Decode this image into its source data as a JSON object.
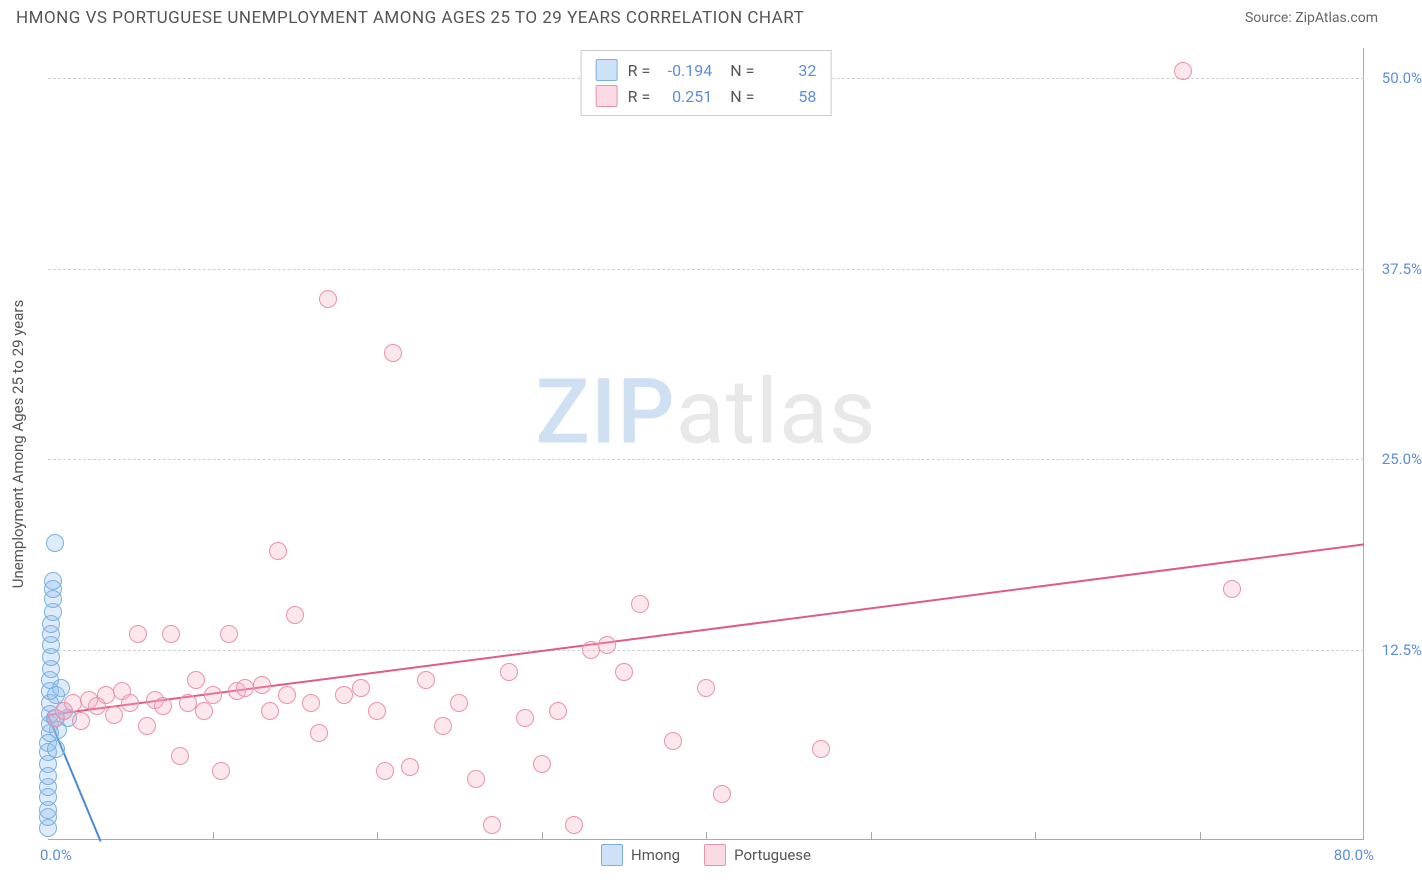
{
  "chart": {
    "title": "HMONG VS PORTUGUESE UNEMPLOYMENT AMONG AGES 25 TO 29 YEARS CORRELATION CHART",
    "source": "Source: ZipAtlas.com",
    "y_axis_label": "Unemployment Among Ages 25 to 29 years",
    "type": "scatter",
    "xlim": [
      0,
      80
    ],
    "ylim": [
      0,
      52
    ],
    "x_ticks": [
      0,
      10,
      20,
      30,
      40,
      50,
      60,
      70,
      80
    ],
    "y_gridlines": [
      12.5,
      25.0,
      37.5,
      50.0
    ],
    "y_tick_labels": [
      "12.5%",
      "25.0%",
      "37.5%",
      "50.0%"
    ],
    "x_min_label": "0.0%",
    "x_max_label": "80.0%",
    "background_color": "#ffffff",
    "grid_color": "#d0d0d0",
    "axis_label_color": "#5b8fd9",
    "title_color": "#555555",
    "title_fontsize": 17,
    "tick_fontsize": 15,
    "marker_size": 18,
    "watermark": {
      "bold": "ZIP",
      "light": "atlas",
      "fontsize": 90,
      "color_bold": "#cfe0f2",
      "color_light": "#e8e8e8"
    },
    "series": [
      {
        "name": "Hmong",
        "color_fill": "rgba(145,190,235,0.3)",
        "color_border": "#7ab0e0",
        "trend_color": "#4a8ad4",
        "R": "-0.194",
        "N": "32",
        "trend": {
          "x1": 0,
          "y1": 8.3,
          "x2": 3.2,
          "y2": 0
        },
        "points": [
          [
            0.0,
            0.8
          ],
          [
            0.0,
            1.5
          ],
          [
            0.0,
            2.0
          ],
          [
            0.0,
            2.8
          ],
          [
            0.0,
            3.5
          ],
          [
            0.0,
            4.2
          ],
          [
            0.0,
            5.0
          ],
          [
            0.0,
            5.8
          ],
          [
            0.0,
            6.4
          ],
          [
            0.1,
            7.0
          ],
          [
            0.1,
            7.6
          ],
          [
            0.1,
            8.3
          ],
          [
            0.1,
            9.0
          ],
          [
            0.1,
            9.8
          ],
          [
            0.1,
            10.5
          ],
          [
            0.2,
            11.2
          ],
          [
            0.2,
            12.0
          ],
          [
            0.2,
            12.8
          ],
          [
            0.2,
            13.5
          ],
          [
            0.2,
            14.2
          ],
          [
            0.3,
            15.0
          ],
          [
            0.3,
            15.8
          ],
          [
            0.3,
            16.5
          ],
          [
            0.3,
            17.0
          ],
          [
            0.4,
            19.5
          ],
          [
            0.4,
            8.0
          ],
          [
            0.5,
            6.0
          ],
          [
            0.5,
            9.5
          ],
          [
            0.6,
            7.2
          ],
          [
            0.8,
            10.0
          ],
          [
            1.0,
            8.5
          ],
          [
            1.2,
            8.0
          ]
        ]
      },
      {
        "name": "Portuguese",
        "color_fill": "rgba(245,175,195,0.3)",
        "color_border": "#e992ad",
        "trend_color": "#e05a8a",
        "R": "0.251",
        "N": "58",
        "trend": {
          "x1": 0,
          "y1": 8.3,
          "x2": 80,
          "y2": 19.5
        },
        "points": [
          [
            0.5,
            8.0
          ],
          [
            1.0,
            8.5
          ],
          [
            1.5,
            9.0
          ],
          [
            2.0,
            7.8
          ],
          [
            2.5,
            9.2
          ],
          [
            3.0,
            8.8
          ],
          [
            3.5,
            9.5
          ],
          [
            4.0,
            8.2
          ],
          [
            4.5,
            9.8
          ],
          [
            5.0,
            9.0
          ],
          [
            5.5,
            13.5
          ],
          [
            6.0,
            7.5
          ],
          [
            6.5,
            9.2
          ],
          [
            7.0,
            8.8
          ],
          [
            7.5,
            13.5
          ],
          [
            8.0,
            5.5
          ],
          [
            8.5,
            9.0
          ],
          [
            9.0,
            10.5
          ],
          [
            9.5,
            8.5
          ],
          [
            10.0,
            9.5
          ],
          [
            10.5,
            4.5
          ],
          [
            11.0,
            13.5
          ],
          [
            11.5,
            9.8
          ],
          [
            12.0,
            10.0
          ],
          [
            13.0,
            10.2
          ],
          [
            13.5,
            8.5
          ],
          [
            14.0,
            19.0
          ],
          [
            14.5,
            9.5
          ],
          [
            15.0,
            14.8
          ],
          [
            16.0,
            9.0
          ],
          [
            16.5,
            7.0
          ],
          [
            17.0,
            35.5
          ],
          [
            18.0,
            9.5
          ],
          [
            19.0,
            10.0
          ],
          [
            20.0,
            8.5
          ],
          [
            20.5,
            4.5
          ],
          [
            21.0,
            32.0
          ],
          [
            22.0,
            4.8
          ],
          [
            23.0,
            10.5
          ],
          [
            24.0,
            7.5
          ],
          [
            25.0,
            9.0
          ],
          [
            26.0,
            4.0
          ],
          [
            27.0,
            1.0
          ],
          [
            28.0,
            11.0
          ],
          [
            29.0,
            8.0
          ],
          [
            30.0,
            5.0
          ],
          [
            31.0,
            8.5
          ],
          [
            32.0,
            1.0
          ],
          [
            33.0,
            12.5
          ],
          [
            34.0,
            12.8
          ],
          [
            35.0,
            11.0
          ],
          [
            36.0,
            15.5
          ],
          [
            38.0,
            6.5
          ],
          [
            40.0,
            10.0
          ],
          [
            41.0,
            3.0
          ],
          [
            47.0,
            6.0
          ],
          [
            69.0,
            50.5
          ],
          [
            72.0,
            16.5
          ]
        ]
      }
    ],
    "bottom_legend": [
      "Hmong",
      "Portuguese"
    ]
  }
}
